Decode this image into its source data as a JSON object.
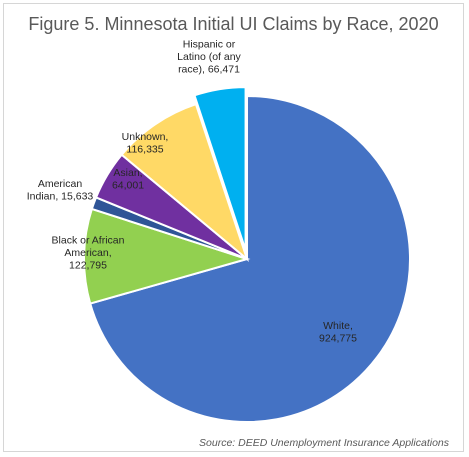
{
  "chart_data": {
    "type": "pie",
    "title": "Figure 5. Minnesota Initial UI Claims by Race, 2020",
    "source": "Source: DEED Unemployment Insurance Applications",
    "slices": [
      {
        "name": "White",
        "label_lines": [
          "White,",
          "924,775"
        ],
        "value": 924775,
        "color": "#4472C4",
        "exploded": false
      },
      {
        "name": "Black or African American",
        "label_lines": [
          "Black or African",
          "American,",
          "122,795"
        ],
        "value": 122795,
        "color": "#92D050",
        "exploded": false
      },
      {
        "name": "American Indian",
        "label_lines": [
          "American",
          "Indian, 15,633"
        ],
        "value": 15633,
        "color": "#2F5597",
        "exploded": false
      },
      {
        "name": "Asian",
        "label_lines": [
          "Asian,",
          "64,001"
        ],
        "value": 64001,
        "color": "#7030A0",
        "exploded": false
      },
      {
        "name": "Unknown",
        "label_lines": [
          "Unknown,",
          "116,335"
        ],
        "value": 116335,
        "color": "#FFD966",
        "exploded": false
      },
      {
        "name": "Hispanic or Latino (of any race)",
        "label_lines": [
          "Hispanic or",
          "Latino (of any",
          "race), 66,471"
        ],
        "value": 66471,
        "color": "#00B0F0",
        "exploded": true
      }
    ]
  }
}
